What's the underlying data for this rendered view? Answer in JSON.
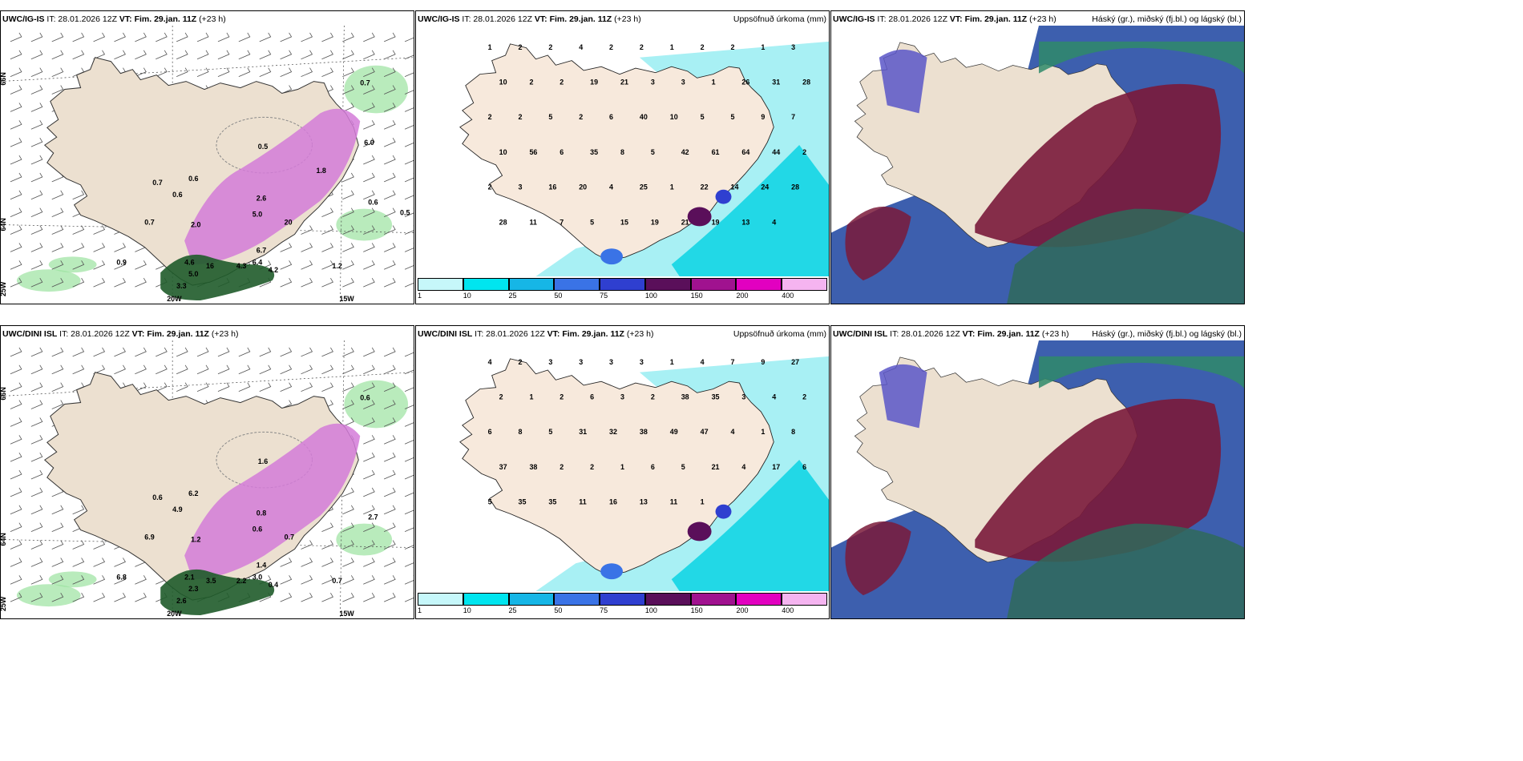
{
  "panels": [
    {
      "model": "UWC/IG-IS",
      "it": "IT: 28.01.2026 12Z",
      "vt_label": "VT:",
      "vt": "Fim. 29.jan. 11Z",
      "lead": "(+23 h)",
      "right_title": ""
    },
    {
      "model": "UWC/IG-IS",
      "it": "IT: 28.01.2026 12Z",
      "vt_label": "VT:",
      "vt": "Fim. 29.jan. 11Z",
      "lead": "(+23 h)",
      "right_title": "Uppsöfnuð úrkoma (mm)"
    },
    {
      "model": "UWC/IG-IS",
      "it": "IT: 28.01.2026 12Z",
      "vt_label": "VT:",
      "vt": "Fim. 29.jan. 11Z",
      "lead": "(+23 h)",
      "right_title": "Háský (gr.), miðský (fj.bl.) og lágský (bl.)"
    },
    {
      "model": "UWC/DINI ISL",
      "it": "IT: 28.01.2026 12Z",
      "vt_label": "VT:",
      "vt": "Fim. 29.jan. 11Z",
      "lead": "(+23 h)",
      "right_title": ""
    },
    {
      "model": "UWC/DINI ISL",
      "it": "IT: 28.01.2026 12Z",
      "vt_label": "VT:",
      "vt": "Fim. 29.jan. 11Z",
      "lead": "(+23 h)",
      "right_title": "Uppsöfnuð úrkoma (mm)"
    },
    {
      "model": "UWC/DINI ISL",
      "it": "IT: 28.01.2026 12Z",
      "vt_label": "VT:",
      "vt": "Fim. 29.jan. 11Z",
      "lead": "(+23 h)",
      "right_title": "Háský (gr.), miðský (fj.bl.) og lágský (bl.)"
    }
  ],
  "colorbar": {
    "ticks": [
      "1",
      "10",
      "25",
      "50",
      "75",
      "100",
      "150",
      "200",
      "400"
    ],
    "colors": [
      "#c6f7fa",
      "#00e5ef",
      "#16b6e6",
      "#3a73e6",
      "#2f3fd0",
      "#5a0f5a",
      "#a0128f",
      "#e200c0",
      "#f5b4f0"
    ]
  },
  "axis_labels": {
    "lat_66": "66N",
    "lat_64": "64N",
    "lat_25w": "25W",
    "lon_20w": "20W",
    "lon_15w": "15W"
  },
  "precip_map_top": [
    "1",
    "2",
    "2",
    "4",
    "2",
    "2",
    "1",
    "2",
    "2",
    "1",
    "3",
    "10",
    "2",
    "2",
    "19",
    "21",
    "3",
    "3",
    "1",
    "26",
    "31",
    "28",
    "2",
    "2",
    "5",
    "2",
    "6",
    "40",
    "10",
    "5",
    "5",
    "9",
    "7",
    "10",
    "56",
    "6",
    "35",
    "8",
    "5",
    "42",
    "61",
    "64",
    "44",
    "2",
    "2",
    "3",
    "16",
    "20",
    "4",
    "25",
    "1",
    "22",
    "14",
    "24",
    "28",
    "28",
    "11",
    "7",
    "5",
    "15",
    "19",
    "21",
    "19",
    "13",
    "4"
  ],
  "precip_map_bottom": [
    "4",
    "2",
    "3",
    "3",
    "3",
    "3",
    "1",
    "4",
    "7",
    "9",
    "27",
    "2",
    "1",
    "2",
    "6",
    "3",
    "2",
    "38",
    "35",
    "3",
    "4",
    "2",
    "6",
    "8",
    "5",
    "31",
    "32",
    "38",
    "49",
    "47",
    "4",
    "1",
    "8",
    "37",
    "38",
    "2",
    "2",
    "1",
    "6",
    "5",
    "21",
    "4",
    "17",
    "6",
    "5",
    "35",
    "35",
    "11",
    "16",
    "13",
    "11",
    "1"
  ],
  "wind_map_top": [
    "0.7",
    "0.7",
    "0.6",
    "0.6",
    "0.7",
    "0.9",
    "3.3",
    "5.0",
    "4.6",
    "16",
    "6.4",
    "4.3",
    "6.7",
    "4.2",
    "1.2",
    "2.0",
    "2.6",
    "5.0",
    "20",
    "0.5",
    "0.6",
    "0.5",
    "1.8",
    "6.0"
  ],
  "wind_map_bottom": [
    "0.6",
    "0.6",
    "4.9",
    "6.2",
    "6.9",
    "6.8",
    "2.6",
    "2.3",
    "2.1",
    "3.5",
    "3.0",
    "2.2",
    "1.4",
    "0.4",
    "0.7",
    "1.2",
    "0.8",
    "0.6",
    "0.7",
    "1.6",
    "2.7"
  ]
}
